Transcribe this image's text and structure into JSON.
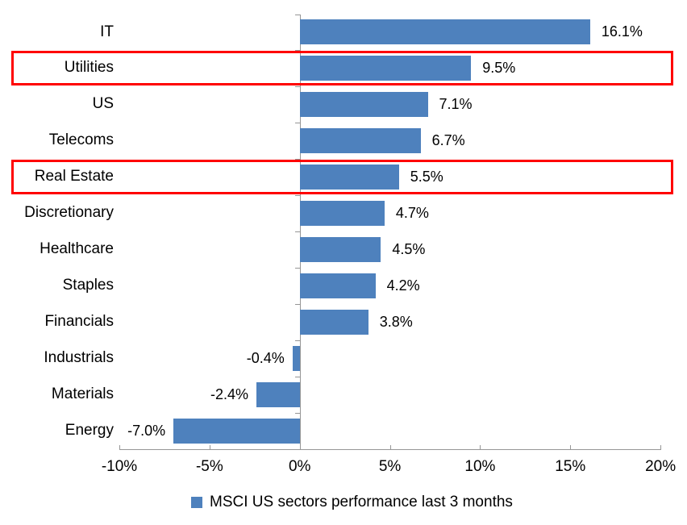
{
  "chart_data": {
    "type": "bar",
    "orientation": "horizontal",
    "title": "",
    "categories": [
      "IT",
      "Utilities",
      "US",
      "Telecoms",
      "Real Estate",
      "Discretionary",
      "Healthcare",
      "Staples",
      "Financials",
      "Industrials",
      "Materials",
      "Energy"
    ],
    "values": [
      16.1,
      9.5,
      7.1,
      6.7,
      5.5,
      4.7,
      4.5,
      4.2,
      3.8,
      -0.4,
      -2.4,
      -7.0
    ],
    "value_labels": [
      "16.1%",
      "9.5%",
      "7.1%",
      "6.7%",
      "5.5%",
      "4.7%",
      "4.5%",
      "4.2%",
      "3.8%",
      "-0.4%",
      "-2.4%",
      "-7.0%"
    ],
    "x_ticks": [
      {
        "value": -10,
        "label": "-10%"
      },
      {
        "value": -5,
        "label": "-5%"
      },
      {
        "value": 0,
        "label": "0%"
      },
      {
        "value": 5,
        "label": "5%"
      },
      {
        "value": 10,
        "label": "10%"
      },
      {
        "value": 15,
        "label": "15%"
      },
      {
        "value": 20,
        "label": "20%"
      }
    ],
    "xlim": [
      -10,
      20
    ],
    "grid": "off",
    "highlighted_categories": [
      "Utilities",
      "Real Estate"
    ],
    "legend": {
      "position": "bottom",
      "marker": "square",
      "label": "MSCI US sectors performance last 3 months"
    },
    "colors": {
      "bar": "#4e81bd",
      "highlight_box": "#ff0000",
      "axis": "#969696",
      "text": "#000000",
      "background": "#ffffff"
    }
  }
}
